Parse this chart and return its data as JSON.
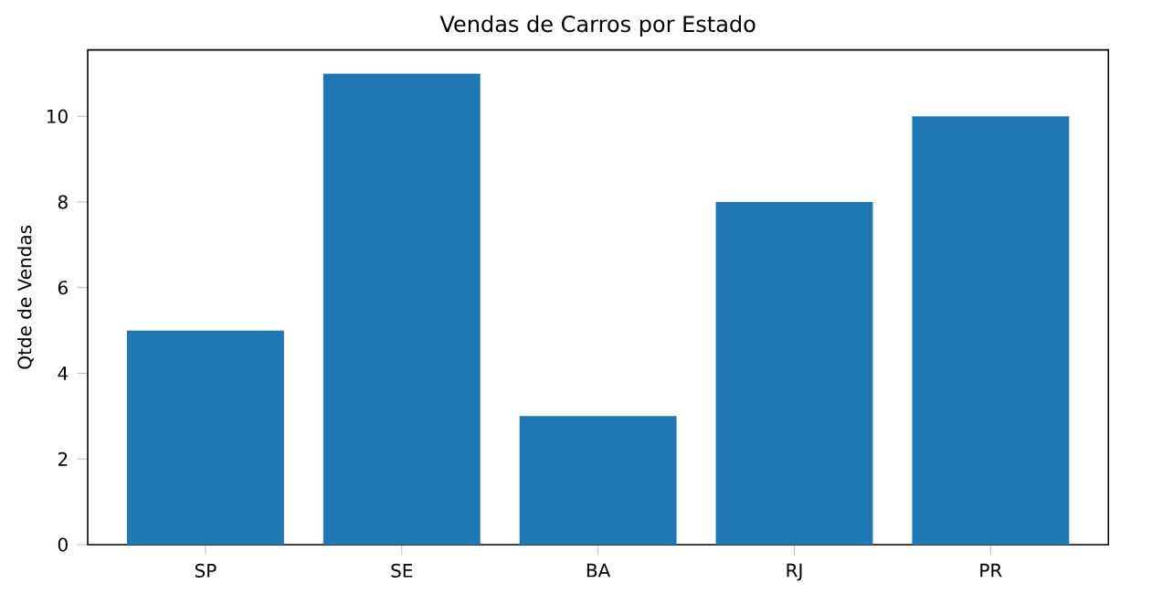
{
  "chart_data": {
    "type": "bar",
    "title": "Vendas de Carros por Estado",
    "ylabel": "Qtde de Vendas",
    "categories": [
      "SP",
      "SE",
      "BA",
      "RJ",
      "PR"
    ],
    "values": [
      5,
      11,
      3,
      8,
      10
    ],
    "color": "#1f77b4",
    "ylim": [
      0,
      11.55
    ],
    "yticks": [
      0,
      2,
      4,
      6,
      8,
      10
    ]
  }
}
